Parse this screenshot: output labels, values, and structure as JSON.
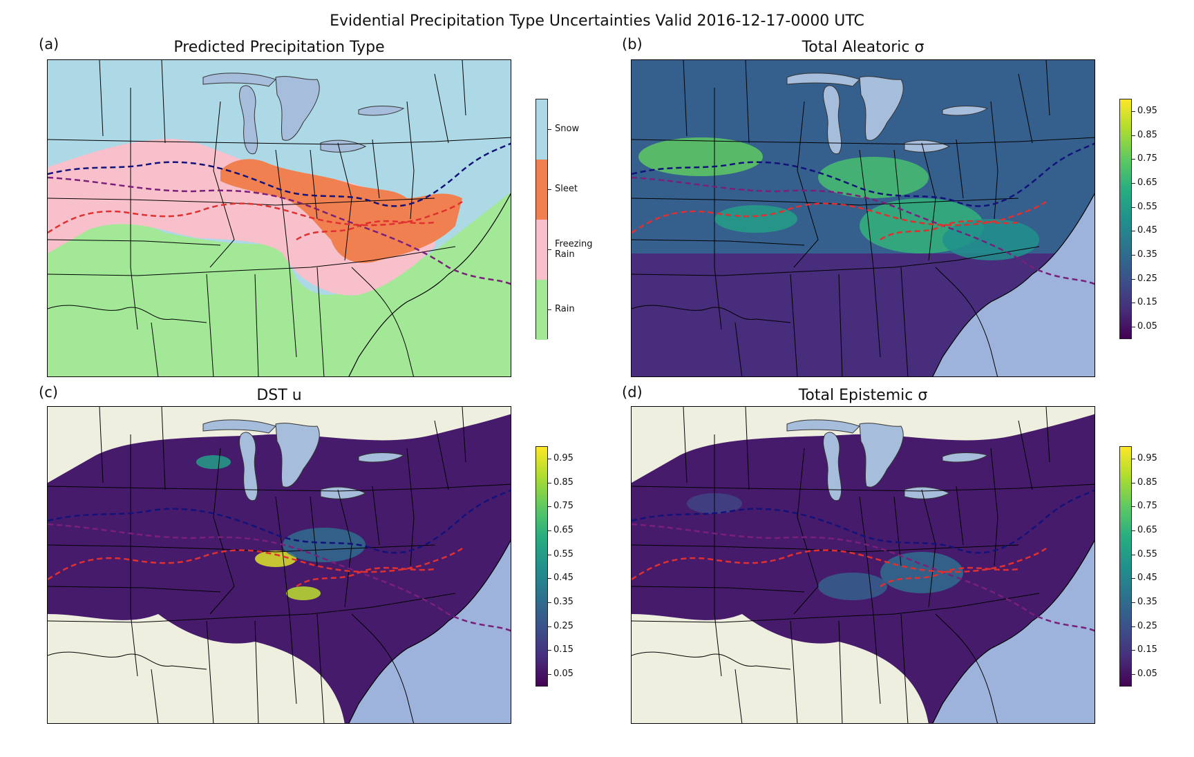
{
  "figure": {
    "title": "Evidential Precipitation Type Uncertainties Valid 2016-12-17-0000 UTC"
  },
  "panels": {
    "a": {
      "label": "(a)",
      "title": "Predicted Precipitation Type"
    },
    "b": {
      "label": "(b)",
      "title": "Total Aleatoric σ"
    },
    "c": {
      "label": "(c)",
      "title": "DST u"
    },
    "d": {
      "label": "(d)",
      "title": "Total Epistemic σ"
    }
  },
  "categorical_colorbar": {
    "labels": [
      "Snow",
      "Sleet",
      "Freezing Rain",
      "Rain"
    ],
    "colors": [
      "#add8e6",
      "#f08050",
      "#f7c0cb",
      "#a2e896"
    ]
  },
  "continuous_colorbar": {
    "ticks": [
      "0.95",
      "0.85",
      "0.75",
      "0.65",
      "0.55",
      "0.45",
      "0.35",
      "0.25",
      "0.15",
      "0.05"
    ],
    "colormap": [
      "#440154",
      "#472f7d",
      "#3b528b",
      "#2c728e",
      "#21918c",
      "#28ae80",
      "#5ec962",
      "#addc30",
      "#fde725"
    ]
  },
  "colors": {
    "ocean": "#9db3dc",
    "land_masked": "#efefdf",
    "lakes": "#a6bddb",
    "contour_blue": "#12127a",
    "contour_purple": "#7a1f7a",
    "contour_red": "#e03030"
  }
}
